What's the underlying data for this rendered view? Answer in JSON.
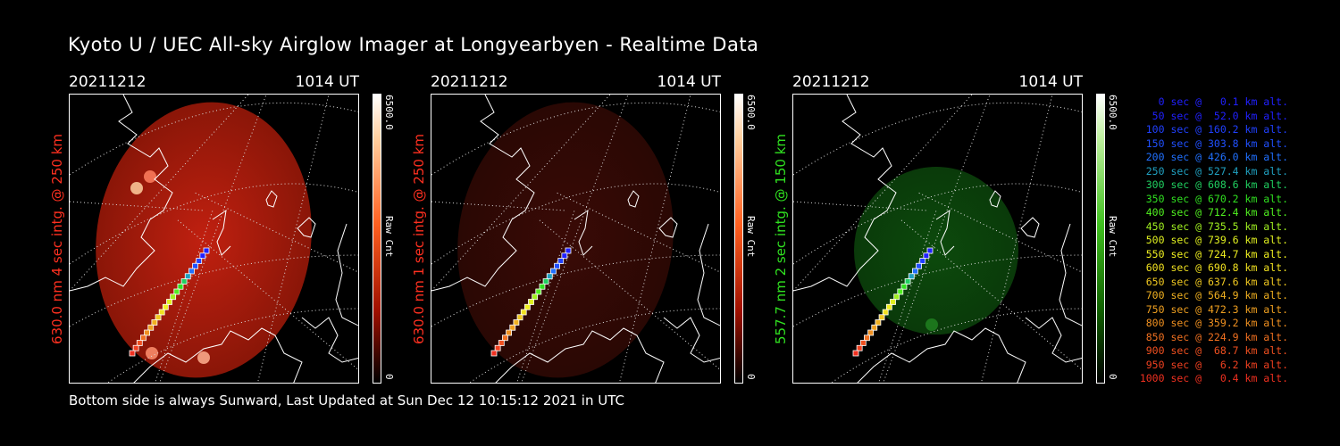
{
  "title": "Kyoto U / UEC All-sky Airglow Imager at Longyearbyen - Realtime Data",
  "footer": "Bottom side is always Sunward, Last Updated at Sun Dec 12 10:15:12 2021 in UTC",
  "panels": [
    {
      "date": "20211212",
      "time": "1014 UT",
      "ylabel": "630.0 nm 4 sec intg. @ 250 km",
      "label_color": "#ff3020",
      "cb_max": "6500.0",
      "cb_min": "0",
      "cb_unit": "Raw Cnt",
      "theme": "red-bright"
    },
    {
      "date": "20211212",
      "time": "1014 UT",
      "ylabel": "630.0 nm 1 sec intg. @ 250 km",
      "label_color": "#ff3020",
      "cb_max": "6500.0",
      "cb_min": "0",
      "cb_unit": "Raw Cnt",
      "theme": "red-dim"
    },
    {
      "date": "20211212",
      "time": "1014 UT",
      "ylabel": "557.7 nm 2 sec intg. @ 150 km",
      "label_color": "#30e020",
      "cb_max": "6500.0",
      "cb_min": "0",
      "cb_unit": "Raw Cnt",
      "theme": "green"
    }
  ],
  "legend": [
    {
      "text": "0 sec @   0.1 km alt.",
      "color": "#2020ff"
    },
    {
      "text": "50 sec @  52.0 km alt.",
      "color": "#2020ff"
    },
    {
      "text": "100 sec @ 160.2 km alt.",
      "color": "#2040ff"
    },
    {
      "text": "150 sec @ 303.8 km alt.",
      "color": "#2050ff"
    },
    {
      "text": "200 sec @ 426.0 km alt.",
      "color": "#2070ff"
    },
    {
      "text": "250 sec @ 527.4 km alt.",
      "color": "#20a0c0"
    },
    {
      "text": "300 sec @ 608.6 km alt.",
      "color": "#20d060"
    },
    {
      "text": "350 sec @ 670.2 km alt.",
      "color": "#30e020"
    },
    {
      "text": "400 sec @ 712.4 km alt.",
      "color": "#50f020"
    },
    {
      "text": "450 sec @ 735.5 km alt.",
      "color": "#a0f020"
    },
    {
      "text": "500 sec @ 739.6 km alt.",
      "color": "#e0f020"
    },
    {
      "text": "550 sec @ 724.7 km alt.",
      "color": "#f0f020"
    },
    {
      "text": "600 sec @ 690.8 km alt.",
      "color": "#f0e020"
    },
    {
      "text": "650 sec @ 637.6 km alt.",
      "color": "#f0c820"
    },
    {
      "text": "700 sec @ 564.9 km alt.",
      "color": "#f0b020"
    },
    {
      "text": "750 sec @ 472.3 km alt.",
      "color": "#f0a020"
    },
    {
      "text": "800 sec @ 359.2 km alt.",
      "color": "#f09020"
    },
    {
      "text": "850 sec @ 224.9 km alt.",
      "color": "#f07020"
    },
    {
      "text": "900 sec @  68.7 km alt.",
      "color": "#f05020"
    },
    {
      "text": "950 sec @   6.2 km alt.",
      "color": "#f04020"
    },
    {
      "text": "1000 sec @   0.4 km alt.",
      "color": "#f03020"
    }
  ]
}
